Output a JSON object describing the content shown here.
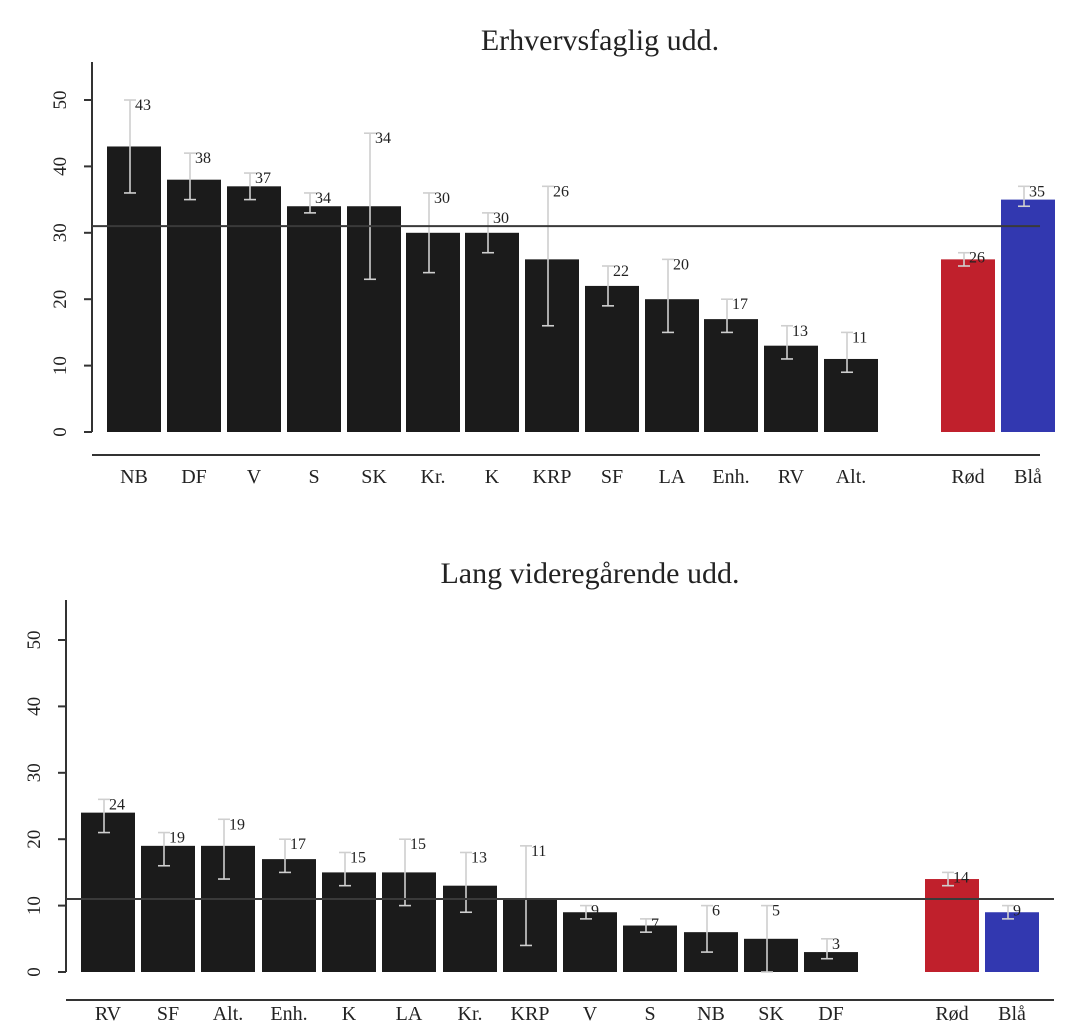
{
  "chart_data": [
    {
      "type": "bar",
      "title": "Erhvervsfaglig udd.",
      "xlabel": "",
      "ylabel": "",
      "ylim": [
        0,
        50
      ],
      "yticks": [
        0,
        10,
        20,
        30,
        40,
        50
      ],
      "reference_line": 31,
      "grid": false,
      "categories": [
        "NB",
        "DF",
        "V",
        "S",
        "SK",
        "Kr.",
        "K",
        "KRP",
        "SF",
        "LA",
        "Enh.",
        "RV",
        "Alt.",
        "Rød",
        "Blå"
      ],
      "values": [
        43,
        38,
        37,
        34,
        34,
        30,
        30,
        26,
        22,
        20,
        17,
        13,
        11,
        26,
        35
      ],
      "value_labels": [
        "43",
        "38",
        "37",
        "34",
        "34",
        "30",
        "30",
        "26",
        "22",
        "20",
        "17",
        "13",
        "11",
        "26",
        "35"
      ],
      "error_low": [
        36,
        35,
        35,
        33,
        23,
        24,
        27,
        16,
        19,
        15,
        15,
        11,
        9,
        25,
        34
      ],
      "error_high": [
        50,
        42,
        39,
        36,
        45,
        36,
        33,
        37,
        25,
        26,
        20,
        16,
        15,
        27,
        37
      ],
      "bar_colors": [
        "#1b1b1b",
        "#1b1b1b",
        "#1b1b1b",
        "#1b1b1b",
        "#1b1b1b",
        "#1b1b1b",
        "#1b1b1b",
        "#1b1b1b",
        "#1b1b1b",
        "#1b1b1b",
        "#1b1b1b",
        "#1b1b1b",
        "#1b1b1b",
        "#c0202c",
        "#3238b0"
      ]
    },
    {
      "type": "bar",
      "title": "Lang videregårende udd.",
      "xlabel": "",
      "ylabel": "",
      "ylim": [
        0,
        50
      ],
      "yticks": [
        0,
        10,
        20,
        30,
        40,
        50
      ],
      "reference_line": 11,
      "grid": false,
      "categories": [
        "RV",
        "SF",
        "Alt.",
        "Enh.",
        "K",
        "LA",
        "Kr.",
        "KRP",
        "V",
        "S",
        "NB",
        "SK",
        "DF",
        "Rød",
        "Blå"
      ],
      "values": [
        24,
        19,
        19,
        17,
        15,
        15,
        13,
        11,
        9,
        7,
        6,
        5,
        3,
        14,
        9
      ],
      "value_labels": [
        "24",
        "19",
        "19",
        "17",
        "15",
        "15",
        "13",
        "11",
        "9",
        "7",
        "6",
        "5",
        "3",
        "14",
        "9"
      ],
      "error_low": [
        21,
        16,
        14,
        15,
        13,
        10,
        9,
        4,
        8,
        6,
        3,
        0,
        2,
        13,
        8
      ],
      "error_high": [
        26,
        21,
        23,
        20,
        18,
        20,
        18,
        19,
        10,
        8,
        10,
        10,
        5,
        15,
        10
      ],
      "bar_colors": [
        "#1b1b1b",
        "#1b1b1b",
        "#1b1b1b",
        "#1b1b1b",
        "#1b1b1b",
        "#1b1b1b",
        "#1b1b1b",
        "#1b1b1b",
        "#1b1b1b",
        "#1b1b1b",
        "#1b1b1b",
        "#1b1b1b",
        "#1b1b1b",
        "#c0202c",
        "#3238b0"
      ]
    }
  ],
  "colors": {
    "bar": "#1b1b1b",
    "red_block": "#c0202c",
    "blue_block": "#3238b0",
    "axis": "#333333",
    "error_bar": "#cfcfcf"
  }
}
